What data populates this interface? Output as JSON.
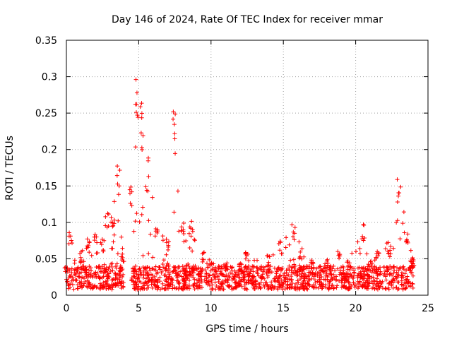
{
  "chart_data": {
    "type": "scatter",
    "title": "Day 146 of 2024, Rate Of TEC Index for receiver mmar",
    "xlabel": "GPS time / hours",
    "ylabel": "ROTI / TECUs",
    "xlim": [
      0,
      25
    ],
    "ylim": [
      0,
      0.35
    ],
    "x_ticks": [
      0,
      5,
      10,
      15,
      20,
      25
    ],
    "x_tick_labels": [
      "0",
      "5",
      "10",
      "15",
      "20",
      "25"
    ],
    "y_ticks": [
      0,
      0.05,
      0.1,
      0.15,
      0.2,
      0.25,
      0.3,
      0.35
    ],
    "y_tick_labels": [
      "0",
      "0.05",
      "0.1",
      "0.15",
      "0.2",
      "0.25",
      "0.3",
      "0.35"
    ],
    "grid": true,
    "marker": "plus",
    "series_color": "#ff0000",
    "x_range_data": [
      0,
      24
    ],
    "envelope": [
      {
        "x": 0.0,
        "upper": 0.04
      },
      {
        "x": 0.3,
        "upper": 0.09
      },
      {
        "x": 1.0,
        "upper": 0.06
      },
      {
        "x": 1.5,
        "upper": 0.085
      },
      {
        "x": 2.0,
        "upper": 0.09
      },
      {
        "x": 2.5,
        "upper": 0.08
      },
      {
        "x": 2.8,
        "upper": 0.115
      },
      {
        "x": 3.2,
        "upper": 0.12
      },
      {
        "x": 3.6,
        "upper": 0.18
      },
      {
        "x": 3.9,
        "upper": 0.06
      },
      {
        "x": 4.5,
        "upper": 0.15
      },
      {
        "x": 4.8,
        "upper": 0.305
      },
      {
        "x": 5.2,
        "upper": 0.265
      },
      {
        "x": 5.6,
        "upper": 0.19
      },
      {
        "x": 6.2,
        "upper": 0.1
      },
      {
        "x": 7.0,
        "upper": 0.08
      },
      {
        "x": 7.5,
        "upper": 0.252
      },
      {
        "x": 8.0,
        "upper": 0.1
      },
      {
        "x": 8.6,
        "upper": 0.105
      },
      {
        "x": 9.5,
        "upper": 0.06
      },
      {
        "x": 10.0,
        "upper": 0.045
      },
      {
        "x": 11.0,
        "upper": 0.045
      },
      {
        "x": 12.0,
        "upper": 0.045
      },
      {
        "x": 12.5,
        "upper": 0.06
      },
      {
        "x": 14.0,
        "upper": 0.055
      },
      {
        "x": 14.8,
        "upper": 0.075
      },
      {
        "x": 15.7,
        "upper": 0.1
      },
      {
        "x": 16.2,
        "upper": 0.065
      },
      {
        "x": 17.0,
        "upper": 0.05
      },
      {
        "x": 18.0,
        "upper": 0.05
      },
      {
        "x": 18.8,
        "upper": 0.065
      },
      {
        "x": 19.5,
        "upper": 0.05
      },
      {
        "x": 20.5,
        "upper": 0.1
      },
      {
        "x": 21.0,
        "upper": 0.05
      },
      {
        "x": 21.5,
        "upper": 0.06
      },
      {
        "x": 22.3,
        "upper": 0.075
      },
      {
        "x": 23.0,
        "upper": 0.16
      },
      {
        "x": 23.6,
        "upper": 0.09
      },
      {
        "x": 24.0,
        "upper": 0.05
      }
    ]
  }
}
